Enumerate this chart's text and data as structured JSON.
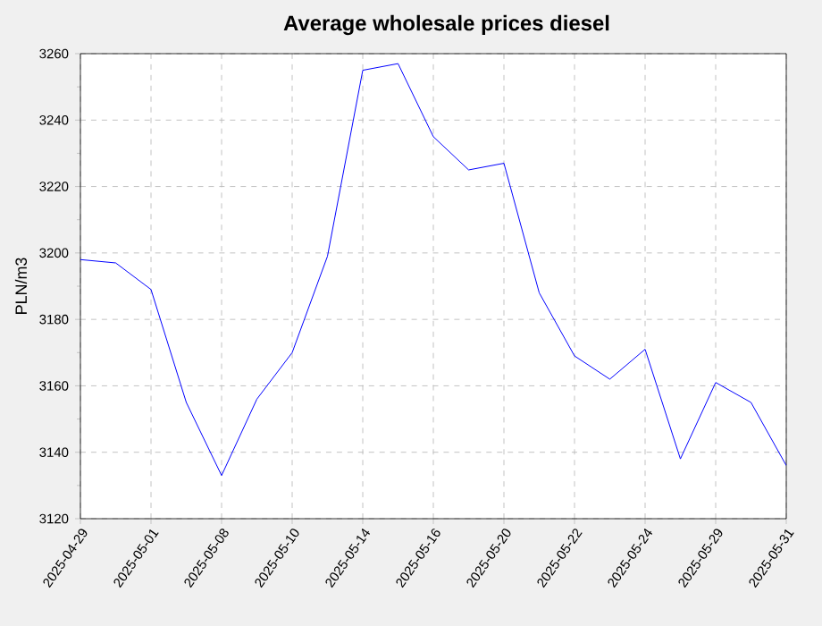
{
  "chart_data": {
    "type": "line",
    "title": "Average wholesale prices diesel",
    "ylabel": "PLN/m3",
    "categories": [
      "2025-04-29",
      null,
      "2025-05-01",
      null,
      "2025-05-08",
      null,
      "2025-05-10",
      null,
      "2025-05-14",
      null,
      "2025-05-16",
      null,
      "2025-05-20",
      null,
      "2025-05-22",
      null,
      "2025-05-24",
      null,
      "2025-05-29",
      null,
      "2025-05-31"
    ],
    "series": [
      {
        "color": "#0000ff",
        "values": [
          3198,
          3197,
          3189,
          3155,
          3133,
          3156,
          3170,
          3199,
          3255,
          3257,
          3235,
          3225,
          3227,
          3188,
          3169,
          3162,
          3171,
          3138,
          3161,
          3155,
          3136
        ]
      }
    ],
    "ylim": [
      3120,
      3260
    ],
    "yticks": [
      3120,
      3140,
      3160,
      3180,
      3200,
      3220,
      3240,
      3260
    ],
    "grid": true,
    "marker": "none",
    "line_style": "solid"
  }
}
